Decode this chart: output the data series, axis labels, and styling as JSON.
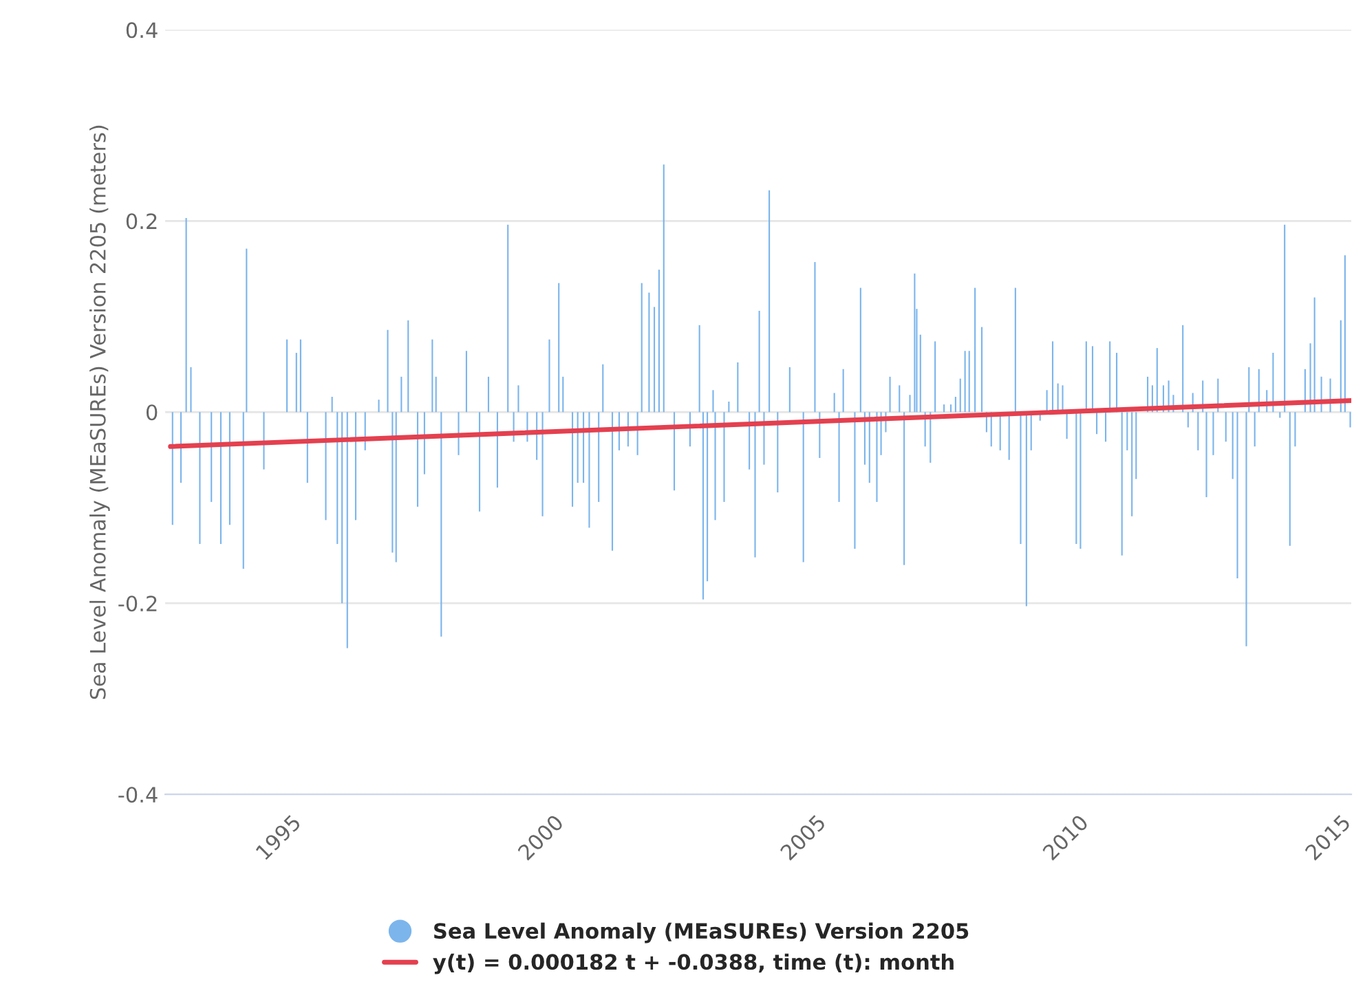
{
  "chart_data": {
    "type": "bar",
    "ylabel": "Sea Level Anomaly (MEaSUREs) Version 2205 (meters)",
    "xlim": [
      1992.6,
      2015.2
    ],
    "xticks": [
      1995,
      2000,
      2005,
      2010,
      2015
    ],
    "ylim": [
      -0.4,
      0.4
    ],
    "yticks": [
      -0.4,
      -0.2,
      0,
      0.2,
      0.4
    ],
    "grid": "y",
    "legend": "bottom",
    "series": [
      {
        "name": "Sea Level Anomaly (MEaSUREs) Version 2205",
        "color": "#7cb5ec",
        "x": [
          1992.74,
          1992.9,
          1993.0,
          1993.09,
          1993.26,
          1993.48,
          1993.66,
          1993.83,
          1994.09,
          1994.15,
          1994.48,
          1994.92,
          1995.1,
          1995.18,
          1995.31,
          1995.66,
          1995.78,
          1995.88,
          1995.97,
          1996.07,
          1996.23,
          1996.41,
          1996.67,
          1996.84,
          1996.93,
          1997.0,
          1997.1,
          1997.23,
          1997.41,
          1997.54,
          1997.69,
          1997.76,
          1997.86,
          1998.19,
          1998.34,
          1998.59,
          1998.76,
          1998.93,
          1999.13,
          1999.24,
          1999.33,
          1999.5,
          1999.68,
          1999.79,
          1999.92,
          2000.1,
          2000.18,
          2000.36,
          2000.46,
          2000.57,
          2000.68,
          2000.86,
          2000.94,
          2001.12,
          2001.25,
          2001.42,
          2001.6,
          2001.68,
          2001.82,
          2001.92,
          2002.01,
          2002.1,
          2002.3,
          2002.6,
          2002.78,
          2002.85,
          2002.93,
          2003.04,
          2003.08,
          2003.25,
          2003.34,
          2003.51,
          2003.73,
          2003.84,
          2003.92,
          2004.01,
          2004.11,
          2004.27,
          2004.5,
          2004.76,
          2004.98,
          2005.07,
          2005.35,
          2005.44,
          2005.52,
          2005.74,
          2005.85,
          2005.93,
          2006.02,
          2006.16,
          2006.24,
          2006.33,
          2006.41,
          2006.59,
          2006.68,
          2006.79,
          2006.88,
          2006.92,
          2006.99,
          2007.08,
          2007.18,
          2007.27,
          2007.44,
          2007.57,
          2007.66,
          2007.75,
          2007.84,
          2007.92,
          2008.03,
          2008.16,
          2008.25,
          2008.34,
          2008.51,
          2008.68,
          2008.8,
          2008.9,
          2009.01,
          2009.1,
          2009.27,
          2009.4,
          2009.51,
          2009.61,
          2009.7,
          2009.78,
          2009.96,
          2010.04,
          2010.15,
          2010.27,
          2010.35,
          2010.52,
          2010.6,
          2010.73,
          2010.83,
          2010.93,
          2011.02,
          2011.1,
          2011.32,
          2011.41,
          2011.5,
          2011.62,
          2011.72,
          2011.81,
          2011.99,
          2012.09,
          2012.18,
          2012.28,
          2012.37,
          2012.44,
          2012.57,
          2012.66,
          2012.81,
          2012.94,
          2013.03,
          2013.2,
          2013.25,
          2013.36,
          2013.44,
          2013.59,
          2013.71,
          2013.84,
          2013.93,
          2014.03,
          2014.13,
          2014.32,
          2014.42,
          2014.5,
          2014.63,
          2014.8,
          2015.0,
          2015.08,
          2015.18
        ],
        "values": [
          -0.118,
          -0.074,
          0.203,
          0.047,
          -0.138,
          -0.094,
          -0.138,
          -0.118,
          -0.164,
          0.171,
          -0.06,
          0.076,
          0.062,
          0.076,
          -0.074,
          -0.113,
          0.016,
          -0.138,
          -0.2,
          -0.247,
          -0.113,
          -0.04,
          0.013,
          0.086,
          -0.147,
          -0.157,
          0.037,
          0.096,
          -0.099,
          -0.065,
          0.076,
          0.037,
          -0.235,
          -0.045,
          0.064,
          -0.104,
          0.037,
          -0.079,
          0.196,
          -0.031,
          0.028,
          -0.031,
          -0.05,
          -0.109,
          0.076,
          0.135,
          0.037,
          -0.099,
          -0.074,
          -0.074,
          -0.121,
          -0.094,
          0.05,
          -0.145,
          -0.04,
          -0.036,
          -0.045,
          0.135,
          0.125,
          0.11,
          0.149,
          0.259,
          -0.082,
          -0.036,
          0.091,
          -0.196,
          -0.177,
          0.023,
          -0.113,
          -0.094,
          0.011,
          0.052,
          -0.06,
          -0.152,
          0.106,
          -0.055,
          0.232,
          -0.084,
          0.047,
          -0.157,
          0.157,
          -0.048,
          0.02,
          -0.094,
          0.045,
          -0.143,
          0.13,
          -0.055,
          -0.074,
          -0.094,
          -0.045,
          -0.021,
          0.037,
          0.028,
          -0.16,
          0.018,
          0.145,
          0.108,
          0.081,
          -0.036,
          -0.053,
          0.074,
          0.008,
          0.008,
          0.016,
          0.035,
          0.064,
          0.064,
          0.13,
          0.089,
          -0.021,
          -0.036,
          -0.04,
          -0.05,
          0.13,
          -0.138,
          -0.203,
          -0.04,
          -0.009,
          0.023,
          0.074,
          0.03,
          0.028,
          -0.028,
          -0.138,
          -0.143,
          0.074,
          0.069,
          -0.023,
          -0.031,
          0.074,
          0.062,
          -0.15,
          -0.04,
          -0.109,
          -0.07,
          0.037,
          0.028,
          0.067,
          0.028,
          0.033,
          0.018,
          0.091,
          -0.016,
          0.02,
          -0.04,
          0.033,
          -0.089,
          -0.045,
          0.035,
          -0.031,
          -0.07,
          -0.174,
          -0.245,
          0.047,
          -0.036,
          0.045,
          0.023,
          0.062,
          -0.006,
          0.196,
          -0.14,
          -0.036,
          0.045,
          0.072,
          0.12,
          0.037,
          0.035,
          0.096,
          0.164,
          -0.016
        ]
      },
      {
        "name": "y(t) = 0.000182 t + -0.0388, time (t): month",
        "type": "line",
        "color": "#e4404f",
        "x": [
          1992.7,
          2015.2
        ],
        "values": [
          -0.036,
          0.012
        ]
      }
    ]
  }
}
